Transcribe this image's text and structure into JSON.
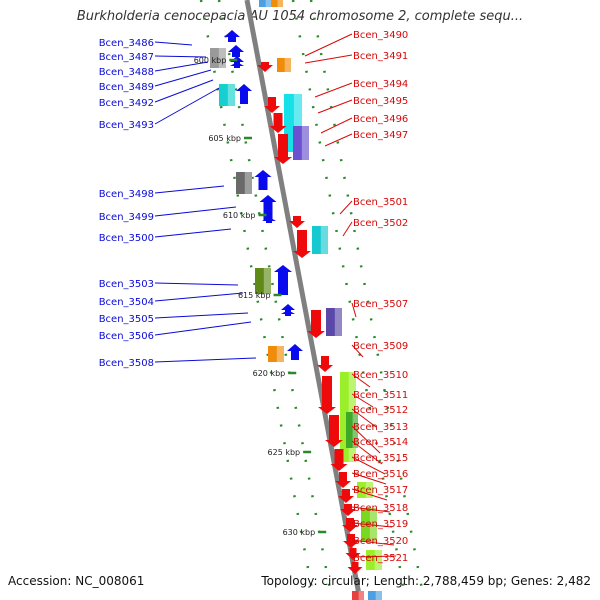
{
  "title": "Burkholderia cenocepacia AU 1054 chromosome 2, complete sequ...",
  "accession": "Accession: NC_008061",
  "summary": "Topology: circular; Length: 2,788,459 bp; Genes: 2,482",
  "scale_labels": [
    "600 kbp",
    "605 kbp",
    "610 kbp",
    "615 kbp",
    "620 kbp",
    "625 kbp",
    "630 kbp"
  ],
  "colors": {
    "forward_label": "#0a0ad6",
    "reverse_label": "#d60a0a",
    "forward_gene": "#0a0aee",
    "reverse_gene": "#ee0a0a",
    "backbone": "#808080",
    "tick": "#2a8a2a"
  },
  "left_genes": [
    "Bcen_3486",
    "Bcen_3487",
    "Bcen_3488",
    "Bcen_3489",
    "Bcen_3492",
    "Bcen_3493",
    "Bcen_3498",
    "Bcen_3499",
    "Bcen_3500",
    "Bcen_3503",
    "Bcen_3504",
    "Bcen_3505",
    "Bcen_3506",
    "Bcen_3508"
  ],
  "right_genes": [
    "Bcen_3490",
    "Bcen_3491",
    "Bcen_3494",
    "Bcen_3495",
    "Bcen_3496",
    "Bcen_3497",
    "Bcen_3501",
    "Bcen_3502",
    "Bcen_3507",
    "Bcen_3509",
    "Bcen_3510",
    "Bcen_3511",
    "Bcen_3512",
    "Bcen_3513",
    "Bcen_3514",
    "Bcen_3515",
    "Bcen_3516",
    "Bcen_3517",
    "Bcen_3518",
    "Bcen_3519",
    "Bcen_3520",
    "Bcen_3521"
  ]
}
